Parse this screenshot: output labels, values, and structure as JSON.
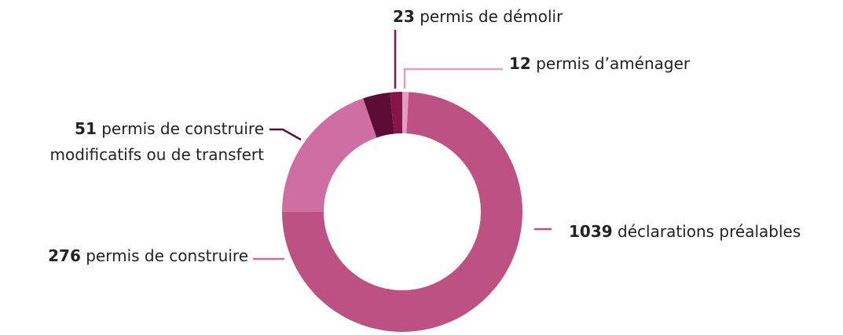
{
  "chart_data": {
    "type": "donut",
    "categories": [
      [
        "permis d’aménager"
      ],
      [
        "déclarations préalables"
      ],
      [
        "permis de construire"
      ],
      [
        "permis de construire",
        "modificatifs ou de transfert"
      ],
      [
        "permis de démolir"
      ]
    ],
    "values": [
      12,
      1039,
      276,
      51,
      23
    ],
    "colors": [
      "#e79ac3",
      "#bd5282",
      "#cf6ea3",
      "#5c0c35",
      "#861445"
    ]
  }
}
